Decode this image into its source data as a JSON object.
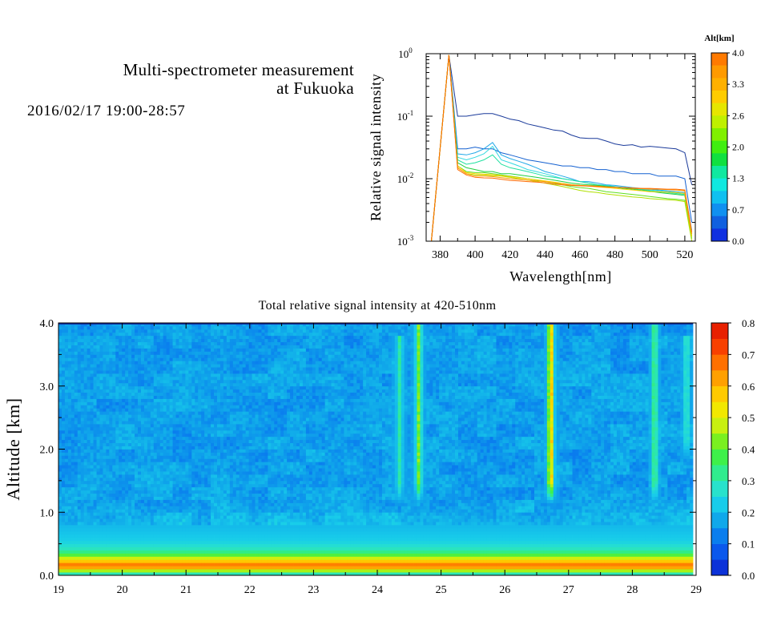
{
  "header": {
    "title_line1": "Multi-spectrometer measurement",
    "title_line2": "at Fukuoka",
    "date_range": "2016/02/17 19:00-28:57"
  },
  "chart_data": [
    {
      "type": "line",
      "title": "",
      "xlabel": "Wavelength[nm]",
      "ylabel": "Relative signal intensity",
      "xlim": [
        372,
        526
      ],
      "ylim": [
        0.001,
        1
      ],
      "yscale": "log",
      "x_ticks": [
        380,
        400,
        420,
        440,
        460,
        480,
        500,
        520
      ],
      "y_ticks": [
        {
          "value": 0.001,
          "label": "10",
          "sup": "-3"
        },
        {
          "value": 0.01,
          "label": "10",
          "sup": "-2"
        },
        {
          "value": 0.1,
          "label": "10",
          "sup": "-1"
        },
        {
          "value": 1,
          "label": "10",
          "sup": "0"
        }
      ],
      "x": [
        375,
        385,
        390,
        395,
        400,
        405,
        410,
        415,
        420,
        425,
        430,
        435,
        440,
        445,
        450,
        455,
        460,
        465,
        470,
        475,
        480,
        485,
        490,
        495,
        500,
        505,
        510,
        515,
        520,
        524
      ],
      "colorbar": {
        "title": "Alt[km]",
        "ticks": [
          "4.0",
          "3.3",
          "2.6",
          "2.0",
          "1.3",
          "0.7",
          "0.0"
        ],
        "colors": [
          "#ff7a00",
          "#ff9a00",
          "#ffb000",
          "#ffcc00",
          "#e6e600",
          "#bff000",
          "#80f000",
          "#40ee10",
          "#10e040",
          "#10e8a0",
          "#10e8e0",
          "#10c0f0",
          "#1090f0",
          "#1060e0",
          "#1030e0"
        ]
      },
      "series": [
        {
          "color": "#1a3a9a",
          "values": [
            0.001,
            0.95,
            0.1,
            0.1,
            0.105,
            0.11,
            0.11,
            0.1,
            0.09,
            0.085,
            0.075,
            0.07,
            0.065,
            0.06,
            0.058,
            0.05,
            0.045,
            0.044,
            0.044,
            0.04,
            0.036,
            0.034,
            0.035,
            0.032,
            0.033,
            0.032,
            0.031,
            0.03,
            0.026,
            0.008
          ]
        },
        {
          "color": "#1460d0",
          "values": [
            0.001,
            0.95,
            0.03,
            0.03,
            0.032,
            0.03,
            0.03,
            0.026,
            0.024,
            0.022,
            0.02,
            0.019,
            0.018,
            0.017,
            0.016,
            0.016,
            0.015,
            0.015,
            0.014,
            0.014,
            0.013,
            0.013,
            0.012,
            0.012,
            0.012,
            0.011,
            0.011,
            0.011,
            0.01,
            0.002
          ]
        },
        {
          "color": "#20a8e8",
          "values": [
            0.001,
            0.95,
            0.025,
            0.024,
            0.026,
            0.03,
            0.038,
            0.024,
            0.021,
            0.019,
            0.017,
            0.015,
            0.013,
            0.012,
            0.011,
            0.01,
            0.009,
            0.009,
            0.0085,
            0.008,
            0.0078,
            0.0075,
            0.0072,
            0.007,
            0.0068,
            0.0066,
            0.0064,
            0.0062,
            0.006,
            0.0015
          ]
        },
        {
          "color": "#30d8e0",
          "values": [
            0.001,
            0.95,
            0.022,
            0.02,
            0.022,
            0.025,
            0.033,
            0.02,
            0.018,
            0.016,
            0.014,
            0.013,
            0.012,
            0.011,
            0.01,
            0.0095,
            0.009,
            0.0085,
            0.008,
            0.0078,
            0.0075,
            0.0072,
            0.007,
            0.0068,
            0.0066,
            0.0064,
            0.0062,
            0.006,
            0.0058,
            0.0014
          ]
        },
        {
          "color": "#20e0a0",
          "values": [
            0.001,
            0.95,
            0.02,
            0.017,
            0.018,
            0.02,
            0.024,
            0.017,
            0.015,
            0.014,
            0.013,
            0.012,
            0.011,
            0.0105,
            0.01,
            0.0095,
            0.009,
            0.0085,
            0.008,
            0.0077,
            0.0074,
            0.0072,
            0.007,
            0.0067,
            0.0064,
            0.0062,
            0.006,
            0.0058,
            0.0056,
            0.0013
          ]
        },
        {
          "color": "#20d040",
          "values": [
            0.001,
            0.95,
            0.018,
            0.015,
            0.014,
            0.013,
            0.013,
            0.012,
            0.012,
            0.0115,
            0.011,
            0.0105,
            0.01,
            0.0095,
            0.009,
            0.0085,
            0.0082,
            0.008,
            0.0078,
            0.0075,
            0.0073,
            0.007,
            0.0068,
            0.0065,
            0.0063,
            0.006,
            0.0058,
            0.0056,
            0.0054,
            0.0012
          ]
        },
        {
          "color": "#60e020",
          "values": [
            0.001,
            0.95,
            0.016,
            0.013,
            0.0125,
            0.0125,
            0.012,
            0.0115,
            0.011,
            0.0105,
            0.01,
            0.0095,
            0.009,
            0.0085,
            0.008,
            0.0075,
            0.0072,
            0.007,
            0.0066,
            0.0062,
            0.006,
            0.0058,
            0.0056,
            0.0054,
            0.0052,
            0.005,
            0.0048,
            0.0047,
            0.0045,
            0.0011
          ]
        },
        {
          "color": "#b0e000",
          "values": [
            0.001,
            0.95,
            0.015,
            0.012,
            0.0115,
            0.0115,
            0.0112,
            0.011,
            0.0105,
            0.01,
            0.0095,
            0.009,
            0.0085,
            0.008,
            0.0075,
            0.007,
            0.0065,
            0.0062,
            0.006,
            0.0057,
            0.0055,
            0.0053,
            0.0051,
            0.005,
            0.0048,
            0.0047,
            0.0046,
            0.0045,
            0.0043,
            0.001
          ]
        },
        {
          "color": "#ffd000",
          "values": [
            0.001,
            0.95,
            0.016,
            0.0125,
            0.012,
            0.0118,
            0.0116,
            0.0112,
            0.0108,
            0.0104,
            0.01,
            0.0096,
            0.0092,
            0.0088,
            0.0084,
            0.008,
            0.0078,
            0.0076,
            0.0074,
            0.0072,
            0.007,
            0.0068,
            0.0066,
            0.0064,
            0.0062,
            0.0062,
            0.0061,
            0.006,
            0.0058,
            0.0012
          ]
        },
        {
          "color": "#ff9a00",
          "values": [
            0.001,
            0.95,
            0.015,
            0.012,
            0.011,
            0.011,
            0.0108,
            0.0104,
            0.01,
            0.0098,
            0.0095,
            0.0092,
            0.009,
            0.0086,
            0.0083,
            0.008,
            0.0078,
            0.0077,
            0.0076,
            0.0074,
            0.0073,
            0.0072,
            0.007,
            0.0069,
            0.0068,
            0.0068,
            0.0067,
            0.0066,
            0.0064,
            0.0013
          ]
        },
        {
          "color": "#ff6a00",
          "values": [
            0.001,
            0.95,
            0.014,
            0.0115,
            0.0105,
            0.0103,
            0.0102,
            0.0098,
            0.0094,
            0.0092,
            0.009,
            0.0088,
            0.0086,
            0.0082,
            0.008,
            0.0078,
            0.0077,
            0.0076,
            0.0075,
            0.0074,
            0.0073,
            0.0072,
            0.0071,
            0.007,
            0.007,
            0.0069,
            0.0068,
            0.0068,
            0.0066,
            0.0014
          ]
        }
      ]
    },
    {
      "type": "heatmap",
      "title": "Total relative signal intensity at 420-510nm",
      "xlabel": "",
      "ylabel": "Altitude [km]",
      "xlim": [
        19,
        29
      ],
      "ylim": [
        0,
        4
      ],
      "x_ticks": [
        "19",
        "20",
        "21",
        "22",
        "23",
        "24",
        "25",
        "26",
        "27",
        "28",
        "29"
      ],
      "y_ticks": [
        "0.0",
        "1.0",
        "2.0",
        "3.0",
        "4.0"
      ],
      "data_extent_x": [
        19,
        28.95
      ],
      "background_value": 0.15,
      "low_layers": [
        {
          "alt": 0.0,
          "value": 0.2
        },
        {
          "alt": 0.15,
          "value": 0.72
        },
        {
          "alt": 0.22,
          "value": 0.6
        },
        {
          "alt": 0.28,
          "value": 0.48
        },
        {
          "alt": 0.34,
          "value": 0.36
        },
        {
          "alt": 0.42,
          "value": 0.28
        },
        {
          "alt": 0.55,
          "value": 0.22
        },
        {
          "alt": 0.75,
          "value": 0.19
        }
      ],
      "plumes": [
        {
          "time": 24.35,
          "value": 0.3,
          "alt_min": 1.3,
          "alt_max": 3.8
        },
        {
          "time": 24.65,
          "value": 0.42,
          "alt_min": 1.3,
          "alt_max": 4.0
        },
        {
          "time": 26.72,
          "value": 0.6,
          "alt_min": 1.3,
          "alt_max": 4.0
        },
        {
          "time": 28.35,
          "value": 0.35,
          "alt_min": 1.3,
          "alt_max": 4.0
        },
        {
          "time": 28.85,
          "value": 0.28,
          "alt_min": 2.0,
          "alt_max": 3.8
        }
      ],
      "colorbar": {
        "ticks": [
          "0.8",
          "0.7",
          "0.6",
          "0.5",
          "0.4",
          "0.3",
          "0.2",
          "0.1",
          "0.0"
        ],
        "min": 0,
        "max": 0.8,
        "colors": [
          "#0c32d8",
          "#0a58ec",
          "#0a7eee",
          "#10a8ea",
          "#18ccea",
          "#28e2cc",
          "#30ec8e",
          "#3ef04a",
          "#7af020",
          "#c8f010",
          "#f2e800",
          "#ffca00",
          "#ffa000",
          "#ff7000",
          "#f84000",
          "#e82000"
        ]
      }
    }
  ]
}
